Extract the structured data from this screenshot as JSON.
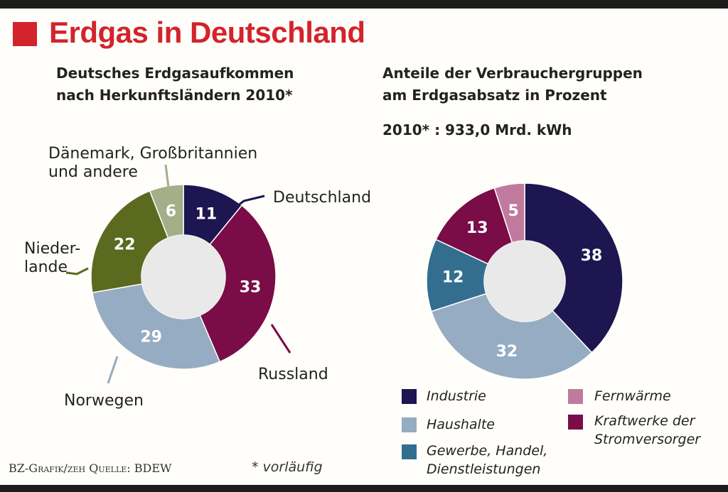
{
  "title": "Erdgas in Deutschland",
  "chart_data": [
    {
      "type": "pie",
      "variant": "donut",
      "title_lines": [
        "Deutsches Erdgasaufkommen",
        "nach Herkunftsländern 2010*"
      ],
      "slices": [
        {
          "label": "Deutschland",
          "value": 11,
          "color": "#1d1651"
        },
        {
          "label": "Russland",
          "value": 33,
          "color": "#7a0c47"
        },
        {
          "label": "Norwegen",
          "value": 29,
          "color": "#95acc2"
        },
        {
          "label_lines": [
            "Nieder-",
            "lande"
          ],
          "value": 22,
          "color": "#5b6a1f"
        },
        {
          "label_lines": [
            "Dänemark, Großbritannien",
            "und andere"
          ],
          "value": 6,
          "color": "#a4ae88"
        }
      ]
    },
    {
      "type": "pie",
      "variant": "donut",
      "title_lines": [
        "Anteile der Verbrauchergruppen",
        "am Erdgasabsatz in Prozent"
      ],
      "total": "2010* : 933,0 Mrd. kWh",
      "slices": [
        {
          "label": "Industrie",
          "value": 38,
          "color": "#1d1651"
        },
        {
          "label": "Haushalte",
          "value": 32,
          "color": "#95acc2"
        },
        {
          "label": "Gewerbe, Handel, Dienstleistungen",
          "value": 12,
          "color": "#336e8f"
        },
        {
          "label": "Kraftwerke der Stromversorger",
          "value": 13,
          "color": "#7a0c47"
        },
        {
          "label": "Fernwärme",
          "value": 5,
          "color": "#c07a9e"
        }
      ],
      "legend": [
        {
          "lines": [
            "Industrie"
          ],
          "color": "#1d1651"
        },
        {
          "lines": [
            "Haushalte"
          ],
          "color": "#95acc2"
        },
        {
          "lines": [
            "Gewerbe, Handel,",
            "Dienstleistungen"
          ],
          "color": "#336e8f"
        },
        {
          "lines": [
            "Fernwärme"
          ],
          "color": "#c07a9e"
        },
        {
          "lines": [
            "Kraftwerke der",
            "Stromversorger"
          ],
          "color": "#7a0c47"
        }
      ]
    }
  ],
  "footer": {
    "source": "BZ-Grafik/zeh   Quelle: BDEW",
    "footnote": "* vorläufig"
  }
}
